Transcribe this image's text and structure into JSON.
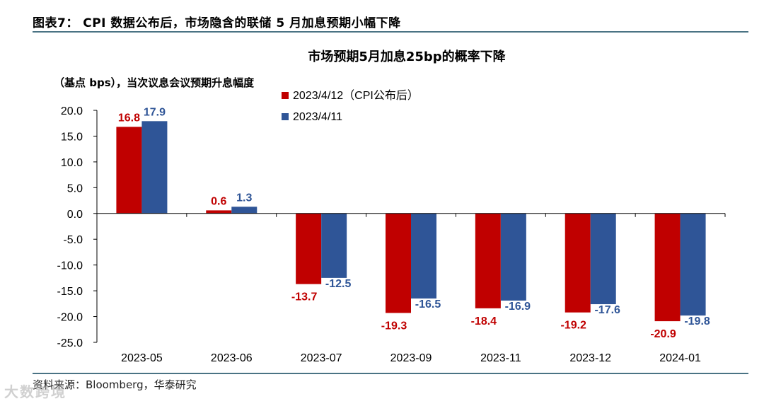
{
  "figure": {
    "title": "图表7： CPI 数据公布后，市场隐含的联储 5 月加息预期小幅下降",
    "source": "资料来源：Bloomberg，华泰研究",
    "watermark": "大数跨境"
  },
  "chart_data": {
    "type": "bar",
    "title": "市场预期5月加息25bp的概率下降",
    "ylabel": "（基点 bps），当次议息会议预期升息幅度",
    "xlabel": "",
    "categories": [
      "2023-05",
      "2023-06",
      "2023-07",
      "2023-09",
      "2023-11",
      "2023-12",
      "2024-01"
    ],
    "series": [
      {
        "name": "2023/4/12（CPI公布后）",
        "color": "#c00000",
        "label_color": "#c00000",
        "values": [
          16.8,
          0.6,
          -13.7,
          -19.3,
          -18.4,
          -19.2,
          -20.9
        ],
        "labels": [
          "16.8",
          "0.6",
          "-13.7",
          "-19.3",
          "-18.4",
          "-19.2",
          "-20.9"
        ]
      },
      {
        "name": "2023/4/11",
        "color": "#2f5597",
        "label_color": "#2f5597",
        "values": [
          17.9,
          1.3,
          -12.5,
          -16.5,
          -16.9,
          -17.6,
          -19.8
        ],
        "labels": [
          "17.9",
          "1.3",
          "-12.5",
          "-16.5",
          "-16.9",
          "-17.6",
          "-19.8"
        ]
      }
    ],
    "ylim": [
      -25,
      20
    ],
    "yticks": [
      "20.0",
      "15.0",
      "10.0",
      "5.0",
      "0.0",
      "-5.0",
      "-10.0",
      "-15.0",
      "-20.0",
      "-25.0"
    ],
    "grid": false,
    "legend_position": "top-center"
  }
}
